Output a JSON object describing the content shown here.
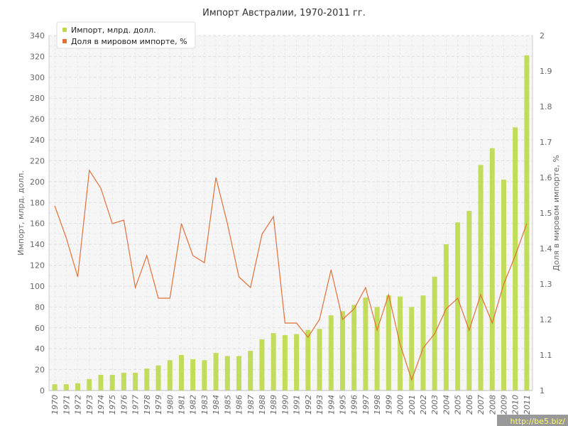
{
  "chart_data": {
    "type": "bar",
    "title": "Импорт Австралии, 1970-2011 гг.",
    "categories": [
      "1970",
      "1971",
      "1972",
      "1973",
      "1974",
      "1975",
      "1976",
      "1977",
      "1978",
      "1979",
      "1980",
      "1981",
      "1982",
      "1983",
      "1984",
      "1985",
      "1986",
      "1987",
      "1988",
      "1989",
      "1990",
      "1991",
      "1992",
      "1993",
      "1994",
      "1995",
      "1996",
      "1997",
      "1998",
      "1999",
      "2000",
      "2001",
      "2002",
      "2003",
      "2004",
      "2005",
      "2006",
      "2007",
      "2008",
      "2009",
      "2010",
      "2011"
    ],
    "series": [
      {
        "name": "Импорт, млрд. долл.",
        "type": "bar",
        "axis": "left",
        "color": "#bcd94a",
        "values": [
          6,
          6,
          7,
          11,
          15,
          15,
          17,
          17,
          21,
          24,
          29,
          34,
          30,
          29,
          36,
          33,
          33,
          38,
          49,
          55,
          53,
          54,
          58,
          59,
          72,
          76,
          82,
          89,
          80,
          91,
          90,
          80,
          91,
          109,
          140,
          161,
          172,
          216,
          232,
          202,
          252,
          321
        ]
      },
      {
        "name": "Доля в мировом импорте, %",
        "type": "line",
        "axis": "right",
        "color": "#e0703a",
        "values": [
          1.52,
          1.43,
          1.32,
          1.62,
          1.57,
          1.47,
          1.48,
          1.29,
          1.38,
          1.26,
          1.26,
          1.47,
          1.38,
          1.36,
          1.6,
          1.47,
          1.32,
          1.29,
          1.44,
          1.49,
          1.19,
          1.19,
          1.15,
          1.2,
          1.34,
          1.2,
          1.23,
          1.29,
          1.17,
          1.27,
          1.13,
          1.03,
          1.12,
          1.16,
          1.23,
          1.26,
          1.17,
          1.27,
          1.19,
          1.3,
          1.38,
          1.47
        ]
      }
    ],
    "ylabel": "Импорт, млрд. долл.",
    "y2label": "Доля в мировом импорте, %",
    "ylim": [
      0,
      340
    ],
    "y2lim": [
      1,
      2
    ],
    "yticks": [
      0,
      20,
      40,
      60,
      80,
      100,
      120,
      140,
      160,
      180,
      200,
      220,
      240,
      260,
      280,
      300,
      320,
      340
    ],
    "y2ticks": [
      "1",
      "1.1",
      "1.2",
      "1.3",
      "1.4",
      "1.5",
      "1.6",
      "1.7",
      "1.8",
      "1.9",
      "2"
    ],
    "grid": true,
    "legend_position": "top-left"
  },
  "watermark": {
    "text": "http://be5.biz/"
  }
}
